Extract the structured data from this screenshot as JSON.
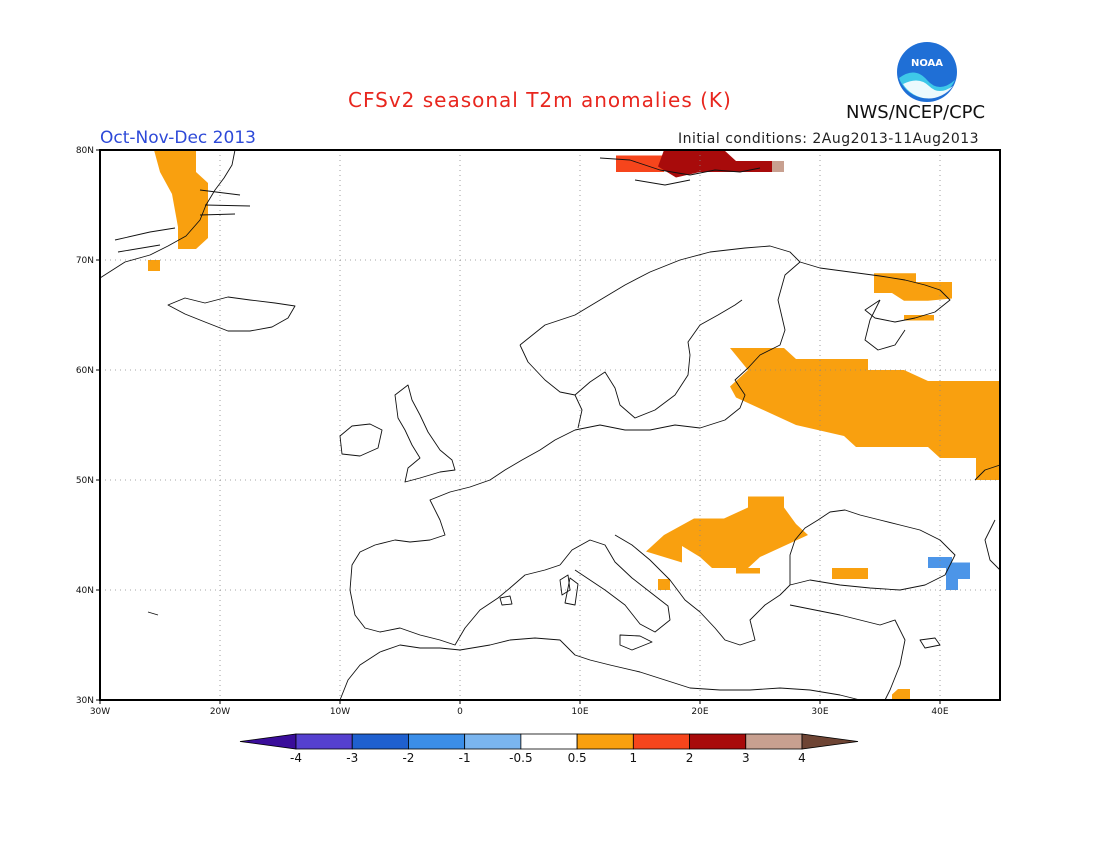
{
  "title": "CFSv2 seasonal T2m anomalies (K)",
  "period": "Oct-Nov-Dec 2013",
  "initial_conditions": "Initial conditions: 2Aug2013-11Aug2013",
  "agency": "NWS/NCEP/CPC",
  "logo_text": "NOAA",
  "map": {
    "lon_range": [
      -30,
      45
    ],
    "lat_range": [
      30,
      80
    ],
    "lon_ticks": [
      {
        "value": -30,
        "label": "30W"
      },
      {
        "value": -20,
        "label": "20W"
      },
      {
        "value": -10,
        "label": "10W"
      },
      {
        "value": 0,
        "label": "0"
      },
      {
        "value": 10,
        "label": "10E"
      },
      {
        "value": 20,
        "label": "20E"
      },
      {
        "value": 30,
        "label": "30E"
      },
      {
        "value": 40,
        "label": "40E"
      }
    ],
    "lat_ticks": [
      {
        "value": 30,
        "label": "30N"
      },
      {
        "value": 40,
        "label": "40N"
      },
      {
        "value": 50,
        "label": "50N"
      },
      {
        "value": 60,
        "label": "60N"
      },
      {
        "value": 70,
        "label": "70N"
      },
      {
        "value": 80,
        "label": "80N"
      }
    ],
    "grid": "dotted",
    "anomaly_regions": [
      {
        "name": "greenland-east-coast",
        "class": "0.5-1",
        "color": "#f9a00f",
        "lonlat": [
          [
            -25.5,
            80
          ],
          [
            -22,
            80
          ],
          [
            -22,
            78
          ],
          [
            -21,
            77
          ],
          [
            -21,
            72
          ],
          [
            -22,
            71
          ],
          [
            -23.5,
            71
          ],
          [
            -23.5,
            73
          ],
          [
            -24,
            76
          ],
          [
            -25,
            78
          ]
        ]
      },
      {
        "name": "greenland-south-patch",
        "class": "0.5-1",
        "color": "#f9a00f",
        "lonlat": [
          [
            -26,
            70
          ],
          [
            -25,
            70
          ],
          [
            -25,
            69
          ],
          [
            -26,
            69
          ]
        ]
      },
      {
        "name": "svalbard-warm",
        "class": "1-2",
        "color": "#f6451c",
        "lonlat": [
          [
            13,
            79.5
          ],
          [
            17,
            79.5
          ],
          [
            17,
            78
          ],
          [
            13,
            78
          ]
        ]
      },
      {
        "name": "svalbard-very-warm",
        "class": "2-3",
        "color": "#a80b0b",
        "lonlat": [
          [
            17,
            80
          ],
          [
            22,
            80
          ],
          [
            23,
            79
          ],
          [
            26,
            79
          ],
          [
            26,
            78
          ],
          [
            20,
            78
          ],
          [
            18,
            77.5
          ],
          [
            16.5,
            78.5
          ]
        ]
      },
      {
        "name": "svalbard-extreme",
        "class": "3-4",
        "color": "#c8a090",
        "lonlat": [
          [
            26,
            79
          ],
          [
            27,
            79
          ],
          [
            27,
            78
          ],
          [
            26,
            78
          ]
        ]
      },
      {
        "name": "kola-peninsula",
        "class": "0.5-1",
        "color": "#f9a00f",
        "lonlat": [
          [
            34.5,
            68.8
          ],
          [
            38,
            68.8
          ],
          [
            38,
            68
          ],
          [
            41,
            68
          ],
          [
            41,
            66.5
          ],
          [
            39,
            66.3
          ],
          [
            37,
            66.3
          ],
          [
            36,
            67
          ],
          [
            34.5,
            67
          ]
        ]
      },
      {
        "name": "white-sea-patch",
        "class": "0.5-1",
        "color": "#f9a00f",
        "lonlat": [
          [
            37,
            65
          ],
          [
            39.5,
            65
          ],
          [
            39.5,
            64.5
          ],
          [
            37,
            64.5
          ]
        ]
      },
      {
        "name": "russia-baltic-west",
        "class": "0.5-1",
        "color": "#f9a00f",
        "lonlat": [
          [
            22.5,
            62
          ],
          [
            27,
            62
          ],
          [
            28,
            61
          ],
          [
            34,
            61
          ],
          [
            34,
            60
          ],
          [
            37,
            60
          ],
          [
            39,
            59
          ],
          [
            45,
            59
          ],
          [
            45,
            50
          ],
          [
            43,
            50
          ],
          [
            43,
            52
          ],
          [
            40,
            52
          ],
          [
            39,
            53
          ],
          [
            33,
            53
          ],
          [
            32,
            54
          ],
          [
            28,
            55
          ],
          [
            24,
            57
          ],
          [
            23,
            57.5
          ],
          [
            22.5,
            58.5
          ],
          [
            24,
            60
          ]
        ]
      },
      {
        "name": "balkans-romania",
        "class": "0.5-1",
        "color": "#f9a00f",
        "lonlat": [
          [
            24,
            48.5
          ],
          [
            27,
            48.5
          ],
          [
            27,
            47.5
          ],
          [
            28,
            46
          ],
          [
            29,
            45
          ],
          [
            27,
            44
          ],
          [
            25,
            43
          ],
          [
            24,
            42
          ],
          [
            23,
            42
          ],
          [
            21,
            42
          ],
          [
            20,
            43
          ],
          [
            18.5,
            44
          ],
          [
            18.5,
            42.5
          ],
          [
            15.5,
            43.5
          ],
          [
            17,
            45
          ],
          [
            19.5,
            46.5
          ],
          [
            22,
            46.5
          ],
          [
            24,
            47.5
          ]
        ]
      },
      {
        "name": "turkey-north-patch",
        "class": "0.5-1",
        "color": "#f9a00f",
        "lonlat": [
          [
            31,
            42
          ],
          [
            34,
            42
          ],
          [
            34,
            41
          ],
          [
            31,
            41
          ]
        ]
      },
      {
        "name": "balkan-south-patch",
        "class": "0.5-1",
        "color": "#f9a00f",
        "lonlat": [
          [
            23,
            42
          ],
          [
            25,
            42
          ],
          [
            25,
            41.5
          ],
          [
            23,
            41.5
          ]
        ]
      },
      {
        "name": "albania-patch",
        "class": "0.5-1",
        "color": "#f9a00f",
        "lonlat": [
          [
            16.5,
            41
          ],
          [
            17.5,
            41
          ],
          [
            17.5,
            40
          ],
          [
            16.5,
            40
          ]
        ]
      },
      {
        "name": "levant-patch",
        "class": "0.5-1",
        "color": "#f9a00f",
        "lonlat": [
          [
            36.5,
            31
          ],
          [
            37.5,
            31
          ],
          [
            37.5,
            30
          ],
          [
            36,
            30
          ],
          [
            36,
            30.5
          ]
        ]
      },
      {
        "name": "caucasus-cool",
        "class": "-1 to -0.5",
        "color": "#4c95e8",
        "lonlat": [
          [
            39,
            43
          ],
          [
            41,
            43
          ],
          [
            41,
            42.5
          ],
          [
            42.5,
            42.5
          ],
          [
            42.5,
            41
          ],
          [
            41.5,
            41
          ],
          [
            41.5,
            40
          ],
          [
            40.5,
            40
          ],
          [
            40.5,
            42
          ],
          [
            39,
            42
          ]
        ]
      }
    ]
  },
  "colorbar": {
    "bins": [
      {
        "color": "#3a0d9a"
      },
      {
        "color": "#5540cf"
      },
      {
        "color": "#1f60cf"
      },
      {
        "color": "#3b8ee8"
      },
      {
        "color": "#7ab5ef"
      },
      {
        "color": "#ffffff"
      },
      {
        "color": "#f9a00f"
      },
      {
        "color": "#f6451c"
      },
      {
        "color": "#a80b0b"
      },
      {
        "color": "#c8a090"
      },
      {
        "color": "#6e4434"
      }
    ],
    "labels": [
      "-4",
      "-3",
      "-2",
      "-1",
      "-0.5",
      "0.5",
      "1",
      "2",
      "3",
      "4"
    ]
  }
}
